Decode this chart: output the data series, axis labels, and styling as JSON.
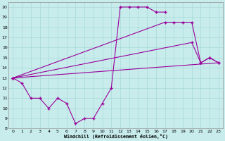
{
  "xlabel": "Windchill (Refroidissement éolien,°C)",
  "bg_color": "#c8ecec",
  "line_color": "#990099",
  "grid_color": "#a8d8d8",
  "xlim": [
    -0.5,
    23.5
  ],
  "ylim": [
    8,
    20.5
  ],
  "xticks": [
    0,
    1,
    2,
    3,
    4,
    5,
    6,
    7,
    8,
    9,
    10,
    11,
    12,
    13,
    14,
    15,
    16,
    17,
    18,
    19,
    20,
    21,
    22,
    23
  ],
  "yticks": [
    8,
    9,
    10,
    11,
    12,
    13,
    14,
    15,
    16,
    17,
    18,
    19,
    20
  ],
  "curve1_x": [
    0,
    1,
    2,
    3,
    4,
    5,
    6,
    7,
    8,
    9,
    10,
    11,
    12,
    13,
    14,
    15,
    16,
    17
  ],
  "curve1_y": [
    13,
    12.5,
    11,
    11,
    10,
    11,
    10.5,
    8.5,
    9,
    9,
    10.5,
    12,
    20,
    20,
    20,
    20,
    19.5,
    19.5
  ],
  "curve2_x": [
    0,
    17,
    18,
    19,
    20,
    21,
    22,
    23
  ],
  "curve2_y": [
    13,
    18.5,
    18.5,
    18.5,
    18.5,
    14.5,
    15,
    14.5
  ],
  "curve3_x": [
    0,
    20,
    21,
    22,
    23
  ],
  "curve3_y": [
    13,
    16.5,
    14.5,
    15,
    14.5
  ],
  "curve4_x": [
    0,
    23
  ],
  "curve4_y": [
    13,
    14.5
  ],
  "marker": "+"
}
